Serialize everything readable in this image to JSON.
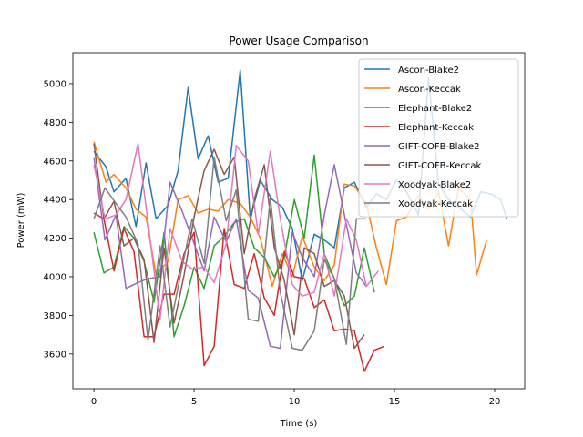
{
  "chart_data": {
    "type": "line",
    "title": "Power Usage Comparison",
    "xlabel": "Time (s)",
    "ylabel": "Power (mW)",
    "xlim": [
      -1.05,
      21.5
    ],
    "ylim": [
      3420,
      5160
    ],
    "xticks": [
      0,
      5,
      10,
      15,
      20
    ],
    "yticks": [
      3600,
      3800,
      4000,
      4200,
      4400,
      4600,
      4800,
      5000
    ],
    "grid": false,
    "legend_position": "top-right",
    "series": [
      {
        "name": "Ascon-Blake2",
        "color": "#1f77b4",
        "x": [
          0,
          0.6,
          1.0,
          1.6,
          2.1,
          2.6,
          3.1,
          3.7,
          4.2,
          4.7,
          5.2,
          5.7,
          6.2,
          6.7,
          7.3,
          7.8,
          8.3,
          8.9,
          9.4,
          9.9,
          10.4,
          11.0,
          11.5,
          12.0,
          12.5,
          13.0,
          13.6,
          14.1,
          14.6,
          15.1,
          15.6,
          16.2,
          16.7,
          17.2,
          17.7,
          18.2,
          18.8,
          19.3,
          19.8,
          20.3,
          20.6
        ],
        "y": [
          4650,
          4570,
          4440,
          4510,
          4260,
          4590,
          4300,
          4370,
          4550,
          4980,
          4610,
          4730,
          4490,
          4510,
          5070,
          4300,
          4500,
          4400,
          4360,
          4250,
          3980,
          4220,
          4190,
          4150,
          4460,
          4490,
          4360,
          4430,
          4400,
          4500,
          4440,
          4320,
          5030,
          4480,
          4400,
          4360,
          4310,
          4440,
          4430,
          4400,
          4300
        ]
      },
      {
        "name": "Ascon-Keccak",
        "color": "#ff7f0e",
        "x": [
          0,
          0.6,
          1.0,
          1.6,
          2.1,
          2.6,
          3.1,
          3.7,
          4.2,
          4.7,
          5.2,
          5.7,
          6.2,
          6.7,
          7.3,
          7.8,
          8.3,
          8.9,
          9.4,
          9.9,
          10.4,
          11.0,
          11.5,
          12.0,
          12.5,
          13.0,
          13.6,
          14.1,
          14.6,
          15.1,
          15.6,
          16.2,
          16.7,
          17.2,
          17.7,
          18.2,
          18.8,
          19.1,
          19.6
        ],
        "y": [
          4700,
          4490,
          4530,
          4460,
          4350,
          4310,
          4010,
          4080,
          4400,
          4420,
          4330,
          4350,
          4340,
          4400,
          4380,
          4310,
          4200,
          3950,
          4120,
          4000,
          4210,
          4050,
          3980,
          4060,
          4480,
          4470,
          4380,
          4150,
          3960,
          4290,
          4310,
          4420,
          4350,
          4440,
          4160,
          4460,
          4400,
          4010,
          4190
        ]
      },
      {
        "name": "Elephant-Blake2",
        "color": "#2ca02c",
        "x": [
          0,
          0.5,
          1.0,
          1.5,
          2.0,
          2.5,
          3.0,
          3.5,
          4.0,
          4.5,
          5.0,
          5.5,
          6.0,
          6.5,
          7.0,
          7.5,
          8.0,
          8.5,
          9.0,
          9.5,
          10.0,
          10.5,
          11.0,
          11.5,
          12.0,
          12.5,
          13.0,
          13.5,
          14.0
        ],
        "y": [
          4230,
          4020,
          4050,
          4260,
          4200,
          4080,
          3870,
          4230,
          3690,
          3850,
          4050,
          3940,
          4160,
          4210,
          4280,
          4300,
          4150,
          4100,
          4000,
          4100,
          4400,
          4200,
          4630,
          4120,
          3990,
          3850,
          3900,
          4150,
          3920
        ]
      },
      {
        "name": "Elephant-Keccak",
        "color": "#d62728",
        "x": [
          0,
          0.5,
          1.0,
          1.5,
          2.0,
          2.5,
          3.0,
          3.5,
          4.0,
          4.5,
          5.0,
          5.5,
          6.0,
          6.5,
          7.0,
          7.5,
          8.0,
          8.5,
          9.0,
          9.5,
          10.0,
          10.5,
          11.0,
          11.5,
          12.0,
          12.5,
          13.0,
          13.5,
          14.0,
          14.5
        ],
        "y": [
          4330,
          4300,
          4030,
          4250,
          4130,
          3690,
          3690,
          3910,
          3910,
          4120,
          4230,
          3540,
          3640,
          4250,
          3960,
          3940,
          4120,
          3890,
          3800,
          4130,
          4000,
          3990,
          3840,
          3880,
          3720,
          3730,
          3720,
          3510,
          3620,
          3640
        ]
      },
      {
        "name": "GIFT-COFB-Blake2",
        "color": "#9467bd",
        "x": [
          0,
          0.55,
          1.1,
          1.6,
          2.2,
          2.7,
          3.3,
          3.8,
          4.4,
          4.9,
          5.5,
          6.0,
          6.6,
          7.1,
          7.7,
          8.2,
          8.8,
          9.3,
          9.9,
          10.4,
          11.0,
          11.5,
          12.0,
          12.6,
          13.1,
          13.6
        ],
        "y": [
          4620,
          4190,
          4320,
          3940,
          3970,
          3990,
          4000,
          4490,
          4340,
          4200,
          4030,
          4310,
          4180,
          4300,
          3930,
          3890,
          3640,
          3630,
          4230,
          4100,
          4000,
          4320,
          4580,
          4270,
          4020,
          3950
        ]
      },
      {
        "name": "GIFT-COFB-Keccak",
        "color": "#8c564b",
        "x": [
          0,
          0.5,
          1.0,
          1.5,
          2.0,
          2.5,
          3.0,
          3.5,
          4.0,
          4.5,
          5.0,
          5.5,
          6.0,
          6.5,
          7.0,
          7.5,
          8.0,
          8.5,
          9.0,
          9.5,
          10.0,
          10.5,
          11.0,
          11.5,
          12.0,
          12.5,
          13.0,
          13.5
        ],
        "y": [
          4690,
          4300,
          4390,
          4160,
          4200,
          4090,
          3660,
          4150,
          3760,
          4010,
          4310,
          4550,
          4660,
          4530,
          4620,
          4120,
          4400,
          4580,
          4150,
          3980,
          3700,
          4150,
          4120,
          3950,
          3980,
          3900,
          3630,
          3700
        ]
      },
      {
        "name": "Xoodyak-Blake2",
        "color": "#e377c2",
        "x": [
          0,
          0.55,
          1.1,
          1.6,
          2.2,
          2.7,
          3.3,
          3.8,
          4.4,
          4.9,
          5.5,
          6.0,
          6.6,
          7.1,
          7.7,
          8.2,
          8.8,
          9.3,
          9.9,
          10.4,
          11.0,
          11.5,
          12.0,
          12.6,
          13.1,
          13.6,
          14.2
        ],
        "y": [
          4580,
          4300,
          4320,
          4400,
          4690,
          4280,
          3780,
          4250,
          4080,
          4040,
          4050,
          3970,
          4170,
          4680,
          4600,
          4220,
          4650,
          4300,
          3960,
          3900,
          3920,
          4120,
          3900,
          4300,
          4190,
          3950,
          4030
        ]
      },
      {
        "name": "Xoodyak-Keccak",
        "color": "#7f7f7f",
        "x": [
          0,
          0.55,
          1.1,
          1.6,
          2.2,
          2.7,
          3.3,
          3.8,
          4.4,
          4.9,
          5.5,
          6.0,
          6.6,
          7.1,
          7.7,
          8.2,
          8.8,
          9.3,
          9.9,
          10.4,
          11.0,
          11.5,
          12.0,
          12.6,
          13.1,
          13.6
        ],
        "y": [
          4300,
          4460,
          4380,
          4310,
          4170,
          3670,
          4160,
          3740,
          4050,
          4300,
          4070,
          4620,
          4290,
          4450,
          3780,
          3770,
          4410,
          3920,
          3630,
          3620,
          3720,
          4090,
          3990,
          3650,
          4300,
          4300
        ]
      }
    ]
  }
}
